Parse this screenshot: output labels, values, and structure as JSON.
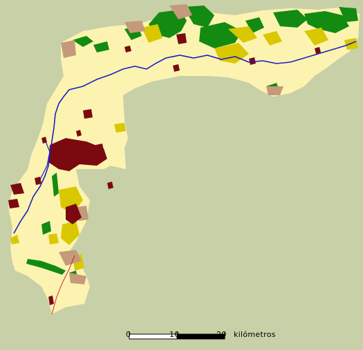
{
  "colors": {
    "background": "#c8d0a8",
    "base_land": "#fdf3b0",
    "urban": "#7a0a10",
    "forest": "#138a12",
    "agriculture": "#d9c800",
    "bare_soil": "#c49a7a",
    "river": "#1a1fc0",
    "road": "#c8102e"
  },
  "scale_bar": {
    "tick_0": "0",
    "tick_10": "10",
    "tick_20": "20",
    "unit": "kilómetros"
  }
}
